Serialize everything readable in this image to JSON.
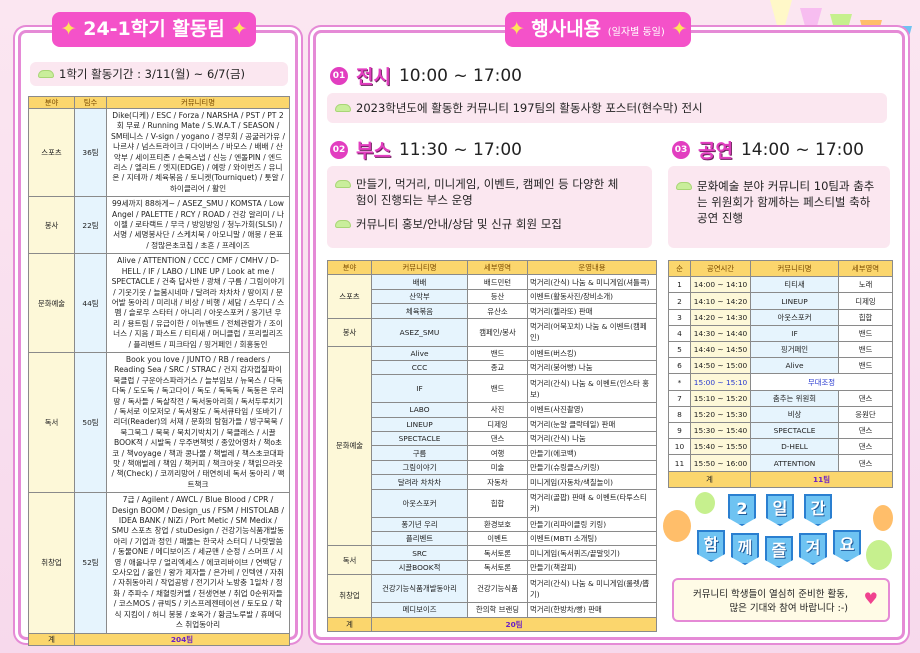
{
  "left": {
    "title": "24-1학기 활동팀",
    "period": "1학기 활동기간 : 3/11(월) ~ 6/7(금)",
    "headers": [
      "분야",
      "팀수",
      "커뮤니티명"
    ],
    "rows": [
      {
        "cat": "스포츠",
        "count": "36팀",
        "names": "Dike(디케) / ESC / Forza / NARSHA / PST / PT 2회 무료 / Running Mate / S.W.A.T / SEASON / SM테니스 / V-sign / yogano / 경무회 / 공굴러가유 / 나르샤 / 넘스트라이크 / 다이버스 / 바모스 / 배배 / 산악부 / 세이프티존 / 손목스냅 / 신능 / 엔돌PIN / 엔드리스 / 엘리트 / 엣지(EDGE) / 예랑 / 와이번즈 / 유니온 / 지테까 / 체육볶음 / 토니켓(Tourniquet) / 톳알 / 하이클리어 / 활인"
      },
      {
        "cat": "봉사",
        "count": "22팀",
        "names": "99세까지 88하게~ / ASEZ_SMU / KOMSTA / Low Angel / PALETTE / RCY / ROAD / 건강 알리미 / 나이젤 / 로타랙트 / 무극 / 방잉방잉 / 청누가회(SLSI) / 서명 / 세명봉사단 / 스케치북 / 아모니말 / 애몽 / 온표 / 정많은초코칩 / 초흔 / 프레이즈"
      },
      {
        "cat": "문화예술",
        "count": "44팀",
        "names": "Alive / ATTENTION / CCC / CMF / CMHV / D-HELL / IF / LABO / LINE UP / Look at me / SPECTACLE / 건축 답사반 / 광채 / 구름 / 그림이야기 / 기웃기웃 / 늘봄시네마 / 달려라 차차차 / 땅이지 / 문어발 동아리 / 미리내 / 비상 / 비행 / 세담 / 스무디 / 스펨 / 슬로우 스타터 / 아니리 / 아웃스포커 / 옹기년 우리 / 용트림 / 유급이한 / 이뉴벤트 / 전체관람가 / 조이너스 / 지음 / 파스트 / 티티새 / 머니클럽 / 프리릴리즈 / 플리벤트 / 피크타임 / 핑거페인 / 회홍동인"
      },
      {
        "cat": "독서",
        "count": "50팀",
        "names": "Book you love / JUNTO / RB / readers / Reading Sea / SRC / STRAC / 건지 감자껍질파이 북클럽 / 구운아스파라거스 / 늘부임보 / 뉴북스 / 다독다독 / 도도독 / 독고다이 / 독도 / 독독독 / 독동은 우리땅 / 독사들 / 독살작전 / 독서동아리회 / 독서두루치기 / 독서로 이모저모 / 독서왕도 / 독서큐타임 / 또바기 / 리더(Reader)의 서재 / 문화의 탐험가들 / 방구북북 / 북그북그 / 북북 / 북치기박치기 / 북클래스 / 시끌BOOK적 / 시발독 / 우주변책벗 / 종았어영차 / 책o초코 / 책voyage / 책과 콩나물 / 책벌레 / 책스초코대파맛 / 책애벌레 / 책임 / 책커피 / 책크아웃 / 책읽으라웃 / 책(Check) / 코끼리망어 / 태연히네 독서 동아리 / 팩트책크"
      },
      {
        "cat": "취창업",
        "count": "52팀",
        "names": "7급 / Agilent / AWCL / Blue Blood / CPR / Design BOOM / Design_us / FSM / HISTOLAB / IDEA BANK / NiZi / Port Metic / SM Medix / SMU 스포츠 창업 / stuDesign / 건강기능식품개발동아리 / 기업과 정인 / 패뚫는 한국사 스터디 / 나랏말씀 / 동물ONE / 메디보이즈 / 세균맨 / 순정 / 스머프 / 시영 / 애올나무 / 얼리엑세스 / 에코리바이브 / 연백당 / 오사오입 / 올인 / 왕가 제자들 / 은가비 / 인텍엔 / 자취 / 자취동아리 / 작업공방 / 전기기사 노방충 1일차 / 정화 / 주파수 / 채혈링커벨 / 천생연분 / 취업 0순위자들 / 코스MOS / 큐빅S / 키스프레젠테이션 / 토도요 / 학식 지킴이 / 허니 봉봉 / 호옥가 / 황금노루발 / 휴메딕스 취업동아리"
      }
    ],
    "total_label": "계",
    "total": "204팀"
  },
  "event": {
    "title": "행사내용",
    "subtitle": "(일자별 동일)",
    "s1": {
      "num": "01",
      "name": "전시",
      "time": "10:00 ~ 17:00",
      "desc": "2023학년도에 활동한 커뮤니티 197팀의 활동사항 포스터(현수막) 전시"
    },
    "s2": {
      "num": "02",
      "name": "부스",
      "time": "11:30 ~ 17:00",
      "b1": "만들기, 먹거리, 미니게임, 이벤트, 캠페인 등 다양한 체험이 진행되는 부스 운영",
      "b2": "커뮤니티 홍보/안내/상담 및 신규 회원 모집"
    },
    "s3": {
      "num": "03",
      "name": "공연",
      "time": "14:00 ~ 17:00",
      "b1": "문화예술 분야 커뮤니티 10팀과 춤추는 위원회가 함께하는 페스티벌 축하 공연 진행"
    }
  },
  "booth": {
    "headers": [
      "분야",
      "커뮤니티명",
      "세부영역",
      "운영내용"
    ],
    "groups": [
      {
        "cat": "스포츠",
        "rows": [
          [
            "배배",
            "배드민턴",
            "먹거리(간식) 나눔 & 미니게임(셔틀콕)"
          ],
          [
            "산악부",
            "등산",
            "이벤트(활동사진/장비소개)"
          ],
          [
            "체육볶음",
            "유산소",
            "먹거리(젤라또) 판매"
          ]
        ]
      },
      {
        "cat": "봉사",
        "rows": [
          [
            "ASEZ_SMU",
            "캠페인/봉사",
            "먹거리(어묵꼬치) 나눔 & 이벤트(캠페인)"
          ]
        ]
      },
      {
        "cat": "문화예술",
        "rows": [
          [
            "Alive",
            "밴드",
            "이벤트(버스킹)"
          ],
          [
            "CCC",
            "종교",
            "먹거리(붕어빵) 나눔"
          ],
          [
            "IF",
            "밴드",
            "먹거리(간식) 나눔 & 이벤트(인스타 홍보)"
          ],
          [
            "LABO",
            "사진",
            "이벤트(사진촬영)"
          ],
          [
            "LINEUP",
            "디제잉",
            "먹거리(눈알 클락테일) 판매"
          ],
          [
            "SPECTACLE",
            "댄스",
            "먹거리(간식) 나눔"
          ],
          [
            "구름",
            "여행",
            "만들기(에코백)"
          ],
          [
            "그림이야기",
            "미술",
            "만들기(슈링클스/키링)"
          ],
          [
            "달려라 차차차",
            "자동차",
            "미니게임(자동차/색칠놀이)"
          ],
          [
            "아웃스포커",
            "힙합",
            "먹거리(골팝) 판매 & 이벤트(타투스티커)"
          ],
          [
            "퐁기년 우리",
            "환경보호",
            "만들기(리파이클링 키링)"
          ],
          [
            "플리벤트",
            "이벤트",
            "이벤트(MBTI 소개팅)"
          ]
        ]
      },
      {
        "cat": "독서",
        "rows": [
          [
            "SRC",
            "독서토론",
            "미니게임(독서퀴즈/끝말잇기)"
          ],
          [
            "시끌BOOK적",
            "독서토론",
            "만들기(책갈피)"
          ]
        ]
      },
      {
        "cat": "취창업",
        "rows": [
          [
            "건강기능식품개발동아리",
            "건강기능식품",
            "먹거리(간식) 나눔 & 미니게임(룰렛/뽑기)"
          ],
          [
            "메디보이즈",
            "한의학 브랜딩",
            "먹거리(한방차/빵) 판매"
          ]
        ]
      }
    ],
    "total_label": "계",
    "total": "20팀"
  },
  "show": {
    "headers": [
      "순",
      "공연시간",
      "커뮤니티명",
      "세부영역"
    ],
    "rows": [
      [
        "1",
        "14:00 ~ 14:10",
        "티티새",
        "노래"
      ],
      [
        "2",
        "14:10 ~ 14:20",
        "LINEUP",
        "디제잉"
      ],
      [
        "3",
        "14:20 ~ 14:30",
        "아웃스포커",
        "힙합"
      ],
      [
        "4",
        "14:30 ~ 14:40",
        "IF",
        "밴드"
      ],
      [
        "5",
        "14:40 ~ 14:50",
        "핑거페인",
        "밴드"
      ],
      [
        "6",
        "14:50 ~ 15:00",
        "Alive",
        "밴드"
      ],
      [
        "*",
        "15:00 ~ 15:10",
        "무대조정",
        ""
      ],
      [
        "7",
        "15:10 ~ 15:20",
        "춤추는 위원회",
        "댄스"
      ],
      [
        "8",
        "15:20 ~ 15:30",
        "비상",
        "응원단"
      ],
      [
        "9",
        "15:30 ~ 15:40",
        "SPECTACLE",
        "댄스"
      ],
      [
        "10",
        "15:40 ~ 15:50",
        "D-HELL",
        "댄스"
      ],
      [
        "11",
        "15:50 ~ 16:00",
        "ATTENTION",
        "댄스"
      ]
    ],
    "total_label": "계",
    "total": "11팀"
  },
  "banner": {
    "line1": [
      "2",
      "일",
      "간"
    ],
    "line2": [
      "함",
      "께",
      "즐",
      "겨",
      "요"
    ]
  },
  "message": {
    "line1": "커뮤니티 학생들이 열심히 준비한 활동,",
    "line2": "많은 기대와 참여 바랍니다 :-)"
  },
  "colors": {
    "accent": "#f452c9",
    "border": "#e58ad6",
    "header": "#fbd66d",
    "total": "#6a1fc6",
    "flag": "#6ec3f2"
  }
}
